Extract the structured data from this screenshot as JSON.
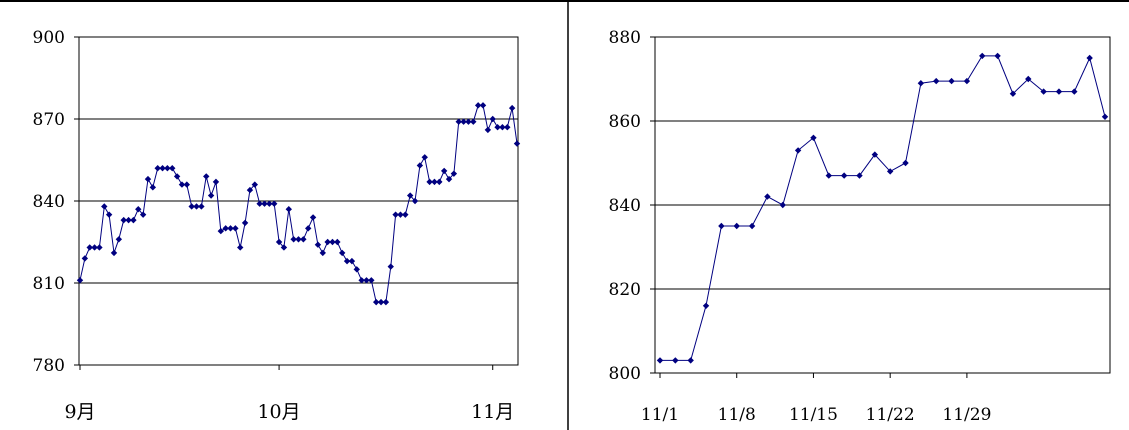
{
  "colors": {
    "line": "#000080",
    "marker": "#000080",
    "grid": "#000000",
    "border": "#000000"
  },
  "chart_data": [
    {
      "type": "line",
      "title": "",
      "xlabel": "",
      "ylabel": "",
      "ylim": [
        780,
        900
      ],
      "yticks": [
        900,
        870,
        840,
        810,
        780
      ],
      "grid_y": [
        870,
        840,
        810
      ],
      "x_tick_labels": [
        "9月",
        "10月",
        "11月"
      ],
      "x_tick_index": [
        0,
        41,
        85
      ],
      "values": [
        811,
        819,
        823,
        823,
        823,
        838,
        835,
        821,
        826,
        833,
        833,
        833,
        837,
        835,
        848,
        845,
        852,
        852,
        852,
        852,
        849,
        846,
        846,
        838,
        838,
        838,
        849,
        842,
        847,
        829,
        830,
        830,
        830,
        823,
        832,
        844,
        846,
        839,
        839,
        839,
        839,
        825,
        823,
        837,
        826,
        826,
        826,
        830,
        834,
        824,
        821,
        825,
        825,
        825,
        821,
        818,
        818,
        815,
        811,
        811,
        811,
        803,
        803,
        803,
        816,
        835,
        835,
        835,
        842,
        840,
        853,
        856,
        847,
        847,
        847,
        851,
        848,
        850,
        869,
        869,
        869,
        869,
        875,
        875,
        866,
        870,
        867,
        867,
        867,
        874,
        861
      ]
    },
    {
      "type": "line",
      "title": "",
      "xlabel": "",
      "ylabel": "",
      "ylim": [
        800,
        880
      ],
      "yticks": [
        880,
        860,
        840,
        820,
        800
      ],
      "grid_y": [
        860,
        840,
        820
      ],
      "x_tick_labels": [
        "11/1",
        "11/8",
        "11/15",
        "11/22",
        "11/29"
      ],
      "x_tick_index": [
        0,
        5,
        10,
        15,
        20
      ],
      "values": [
        803,
        803,
        803,
        816,
        835,
        835,
        835,
        842,
        840,
        853,
        856,
        847,
        847,
        847,
        852,
        848,
        850,
        869,
        869.5,
        869.5,
        869.5,
        875.5,
        875.5,
        866.5,
        870,
        867,
        867,
        867,
        875,
        861
      ]
    }
  ]
}
